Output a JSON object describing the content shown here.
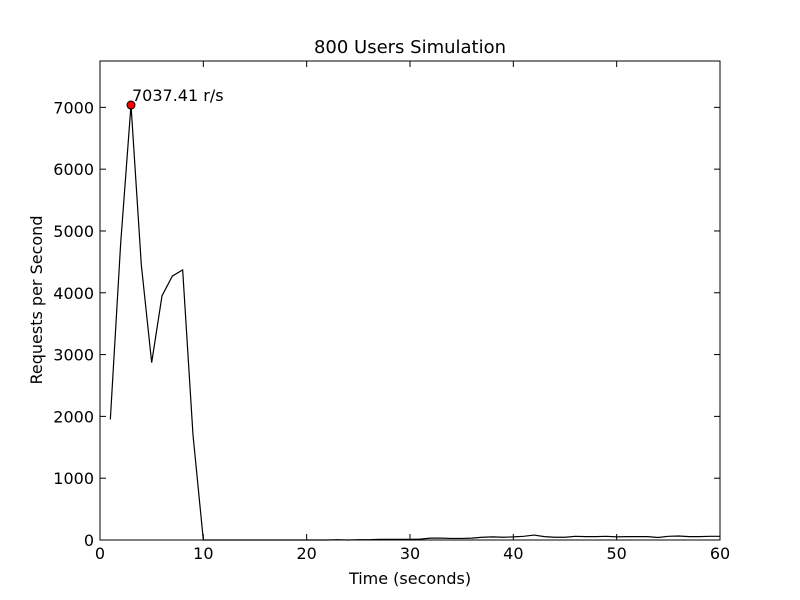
{
  "chart_data": {
    "type": "line",
    "title": "800 Users Simulation",
    "xlabel": "Time (seconds)",
    "ylabel": "Requests per Second",
    "xlim": [
      0,
      60
    ],
    "ylim": [
      0,
      7750
    ],
    "xticks": [
      0,
      10,
      20,
      30,
      40,
      50,
      60
    ],
    "yticks": [
      0,
      1000,
      2000,
      3000,
      4000,
      5000,
      6000,
      7000
    ],
    "xtick_labels": [
      "0",
      "10",
      "20",
      "30",
      "40",
      "50",
      "60"
    ],
    "ytick_labels": [
      "0",
      "1000",
      "2000",
      "3000",
      "4000",
      "5000",
      "6000",
      "7000"
    ],
    "grid": false,
    "series": [
      {
        "color": "#000000",
        "x": [
          1,
          2,
          3,
          4,
          5,
          6,
          7,
          8,
          9,
          10,
          11,
          12,
          13,
          14,
          15,
          16,
          17,
          18,
          19,
          20,
          21,
          22,
          23,
          24,
          25,
          26,
          27,
          28,
          29,
          30,
          31,
          32,
          33,
          34,
          35,
          36,
          37,
          38,
          39,
          40,
          41,
          42,
          43,
          44,
          45,
          46,
          47,
          48,
          49,
          50,
          51,
          52,
          53,
          54,
          55,
          56,
          57,
          58,
          59,
          60
        ],
        "y": [
          1950,
          4800,
          7037.41,
          4450,
          2870,
          3950,
          4270,
          4370,
          1700,
          0,
          0,
          0,
          0,
          0,
          0,
          0,
          0,
          0,
          0,
          0,
          0,
          0,
          5,
          0,
          5,
          5,
          10,
          10,
          10,
          10,
          15,
          30,
          30,
          25,
          25,
          30,
          45,
          50,
          45,
          50,
          60,
          80,
          55,
          45,
          45,
          60,
          55,
          55,
          60,
          50,
          55,
          55,
          55,
          40,
          60,
          65,
          55,
          55,
          60,
          60
        ]
      }
    ],
    "annotation": {
      "x": 3,
      "y": 7037.41,
      "text": "7037.41 r/s",
      "marker_color": "#ff0000"
    }
  }
}
